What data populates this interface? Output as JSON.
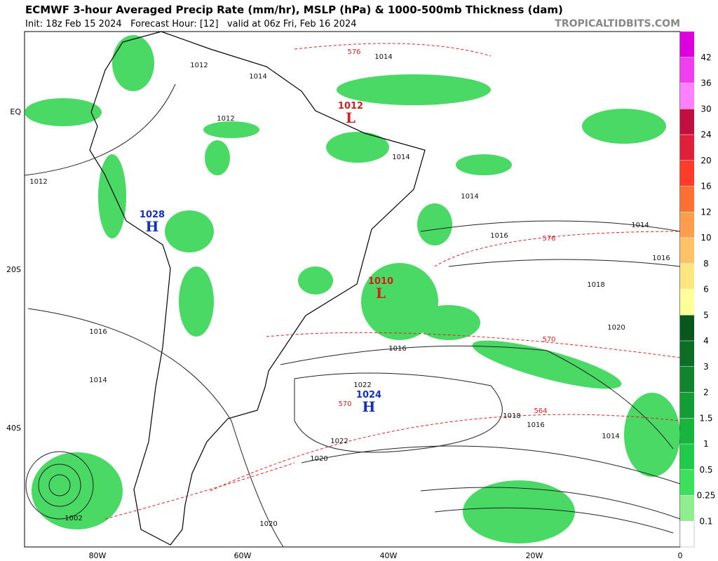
{
  "header": {
    "title": "ECMWF 3-hour Averaged Precip Rate (mm/hr), MSLP (hPa) & 1000-500mb Thickness (dam)",
    "subtitle": "Init: 18z Feb 15 2024   Forecast Hour: [12]   valid at 06z Fri, Feb 16 2024",
    "site": "TROPICALTIDBITS.COM"
  },
  "axes": {
    "lat_labels": [
      "EQ",
      "20S",
      "40S"
    ],
    "lon_labels": [
      "80W",
      "60W",
      "40W",
      "20W",
      "0"
    ]
  },
  "colorbar": {
    "levels": [
      0.1,
      0.25,
      0.5,
      1,
      1.5,
      2,
      3,
      4,
      5,
      6,
      8,
      10,
      12,
      16,
      20,
      24,
      30,
      36,
      42
    ],
    "colors": [
      "#90ee90",
      "#3ce05a",
      "#1fcb48",
      "#18b43e",
      "#149c36",
      "#10852e",
      "#0c6e26",
      "#08581e",
      "#ffff99",
      "#ffe680",
      "#ffc266",
      "#ff9f4d",
      "#ff7033",
      "#ff3c2a",
      "#e0203a",
      "#c01040",
      "#ff80ff",
      "#ee40ee",
      "#dd00dd"
    ],
    "below_color": "#ffffff"
  },
  "centers": [
    {
      "type": "H",
      "pressure": 1028
    },
    {
      "type": "L",
      "pressure": 1012
    },
    {
      "type": "L",
      "pressure": 1010
    },
    {
      "type": "H",
      "pressure": 1024
    }
  ],
  "mslp_labels": [
    1014,
    1012,
    1014,
    1012,
    1012,
    1014,
    1014,
    1016,
    1014,
    1016,
    1018,
    1020,
    1016,
    1016,
    1014,
    1018,
    1016,
    1014,
    1022,
    1020,
    1020,
    1002,
    1022
  ],
  "thickness_labels": [
    576,
    576,
    570,
    564,
    570
  ],
  "colors": {
    "mslp": "#111111",
    "thickness": "#e02020",
    "high": "#1030c0",
    "low": "#d02020"
  }
}
